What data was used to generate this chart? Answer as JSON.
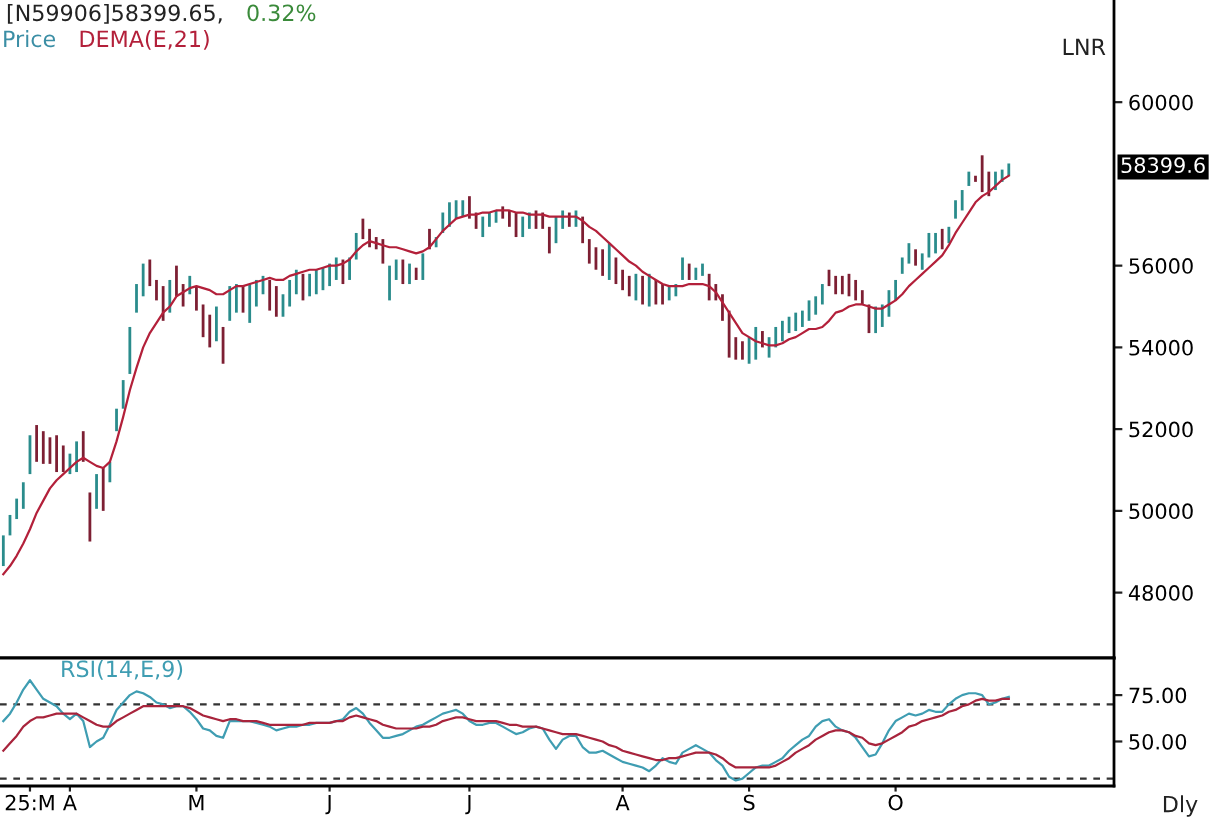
{
  "chart_data": [
    {
      "type": "bar",
      "title": "[N59906]58399.65,",
      "subtitle": "0.32%",
      "legend": "top left",
      "categories": [
        null,
        null,
        null,
        null,
        null,
        null,
        null,
        null,
        null,
        null,
        null,
        null,
        null,
        null,
        null,
        null,
        null,
        null,
        null,
        null,
        null,
        null,
        null,
        null,
        null,
        null,
        null,
        null,
        null,
        null,
        null,
        null,
        null,
        null,
        null,
        null,
        null,
        null,
        null,
        null,
        null,
        null,
        null,
        null,
        null,
        null,
        null,
        null,
        null,
        null,
        null,
        null,
        null,
        null,
        null,
        null,
        null,
        null,
        null,
        null,
        null,
        null,
        null,
        null,
        null,
        null,
        null,
        null,
        null,
        null,
        null,
        null,
        null,
        null,
        null,
        null,
        null,
        null,
        null,
        null,
        null,
        null,
        null,
        null,
        null,
        null,
        null,
        null,
        null,
        null,
        null,
        null,
        null,
        null,
        null,
        null,
        null,
        null,
        null,
        null,
        null,
        null,
        null,
        null,
        null,
        null,
        null,
        null,
        null,
        null,
        null,
        null,
        null,
        null,
        null,
        null,
        null,
        null,
        null,
        null,
        null,
        null,
        null,
        null,
        null,
        null,
        null,
        null,
        null,
        null,
        null,
        null,
        null,
        null,
        null,
        null,
        null,
        null,
        null,
        null,
        null,
        null,
        null,
        null,
        null,
        null,
        null,
        null,
        null,
        null,
        null,
        null
      ],
      "ylim": [
        46400,
        62500
      ],
      "yticks": [
        48000,
        50000,
        52000,
        54000,
        56000,
        60000
      ],
      "series": [
        {
          "name": "Price",
          "type": "bar",
          "color": "#3b8ea5",
          "base": [
            48650,
            49400,
            49800,
            50050,
            50900,
            51200,
            51150,
            51150,
            50950,
            50950,
            50900,
            50950,
            51200,
            49250,
            50050,
            50000,
            50700,
            51950,
            52500,
            53350,
            54850,
            55250,
            55500,
            55150,
            54650,
            54850,
            55250,
            55000,
            55300,
            54900,
            54250,
            54000,
            54150,
            53600,
            54650,
            54850,
            54850,
            54600,
            55000,
            55300,
            54900,
            54750,
            54750,
            55000,
            55300,
            55150,
            55250,
            55300,
            55400,
            55500,
            55650,
            55550,
            55650,
            56150,
            56650,
            56450,
            56400,
            56050,
            55150,
            55650,
            55550,
            55550,
            55650,
            55650,
            56400,
            56450,
            56800,
            56950,
            57150,
            57200,
            57150,
            56900,
            56700,
            56950,
            57050,
            57150,
            56950,
            56700,
            56700,
            56900,
            56900,
            56900,
            56300,
            56550,
            56900,
            56950,
            56950,
            56550,
            56050,
            55900,
            55750,
            55650,
            55550,
            55400,
            55250,
            55150,
            55050,
            55000,
            55050,
            55050,
            55150,
            55250,
            55650,
            55650,
            55650,
            55750,
            55150,
            55150,
            54650,
            53750,
            53700,
            53700,
            53600,
            53700,
            54000,
            53750,
            54000,
            54150,
            54350,
            54400,
            54500,
            54650,
            54800,
            55050,
            55500,
            55300,
            55300,
            55250,
            55150,
            55050,
            54350,
            54350,
            54500,
            54750,
            55150,
            55800,
            56050,
            56000,
            55900,
            56200,
            56300,
            56400,
            56550,
            57150,
            57350,
            57950,
            58050,
            57800,
            57700,
            57850,
            58050,
            58200
          ],
          "values": [
            750,
            500,
            500,
            650,
            950,
            900,
            800,
            650,
            900,
            650,
            500,
            750,
            750,
            1200,
            850,
            1050,
            500,
            550,
            700,
            1150,
            700,
            800,
            650,
            500,
            850,
            800,
            750,
            550,
            450,
            600,
            800,
            800,
            850,
            900,
            850,
            700,
            650,
            950,
            650,
            450,
            750,
            750,
            550,
            650,
            600,
            650,
            550,
            600,
            550,
            550,
            550,
            600,
            550,
            650,
            500,
            450,
            300,
            600,
            850,
            500,
            600,
            500,
            300,
            650,
            500,
            250,
            500,
            600,
            450,
            400,
            550,
            400,
            500,
            350,
            300,
            300,
            400,
            600,
            500,
            400,
            450,
            400,
            650,
            650,
            450,
            350,
            400,
            650,
            600,
            550,
            650,
            900,
            650,
            500,
            500,
            650,
            700,
            800,
            600,
            500,
            350,
            300,
            550,
            400,
            300,
            300,
            650,
            400,
            650,
            1150,
            550,
            450,
            650,
            800,
            400,
            500,
            500,
            500,
            400,
            450,
            400,
            500,
            450,
            500,
            400,
            450,
            450,
            550,
            500,
            350,
            700,
            650,
            550,
            650,
            500,
            400,
            500,
            400,
            400,
            600,
            500,
            500,
            400,
            450,
            500,
            350,
            150,
            900,
            600,
            450,
            300,
            300
          ],
          "colors": [
            "#2a8c8c",
            "#2a8c8c",
            "#2a8c8c",
            "#2a8c8c",
            "#2a8c8c",
            "#7d1f33",
            "#7d1f33",
            "#7d1f33",
            "#7d1f33",
            "#7d1f33",
            "#2a8c8c",
            "#2a8c8c",
            "#7d1f33",
            "#7d1f33",
            "#2a8c8c",
            "#7d1f33",
            "#2a8c8c",
            "#2a8c8c",
            "#2a8c8c",
            "#2a8c8c",
            "#2a8c8c",
            "#2a8c8c",
            "#7d1f33",
            "#7d1f33",
            "#7d1f33",
            "#2a8c8c",
            "#7d1f33",
            "#7d1f33",
            "#2a8c8c",
            "#7d1f33",
            "#7d1f33",
            "#7d1f33",
            "#2a8c8c",
            "#7d1f33",
            "#2a8c8c",
            "#2a8c8c",
            "#7d1f33",
            "#2a8c8c",
            "#2a8c8c",
            "#2a8c8c",
            "#7d1f33",
            "#7d1f33",
            "#2a8c8c",
            "#2a8c8c",
            "#2a8c8c",
            "#7d1f33",
            "#2a8c8c",
            "#2a8c8c",
            "#2a8c8c",
            "#2a8c8c",
            "#2a8c8c",
            "#7d1f33",
            "#2a8c8c",
            "#2a8c8c",
            "#7d1f33",
            "#7d1f33",
            "#7d1f33",
            "#7d1f33",
            "#2a8c8c",
            "#2a8c8c",
            "#7d1f33",
            "#2a8c8c",
            "#7d1f33",
            "#2a8c8c",
            "#7d1f33",
            "#2a8c8c",
            "#2a8c8c",
            "#2a8c8c",
            "#2a8c8c",
            "#2a8c8c",
            "#7d1f33",
            "#7d1f33",
            "#2a8c8c",
            "#2a8c8c",
            "#2a8c8c",
            "#7d1f33",
            "#7d1f33",
            "#7d1f33",
            "#2a8c8c",
            "#2a8c8c",
            "#7d1f33",
            "#7d1f33",
            "#7d1f33",
            "#2a8c8c",
            "#2a8c8c",
            "#7d1f33",
            "#2a8c8c",
            "#7d1f33",
            "#7d1f33",
            "#7d1f33",
            "#7d1f33",
            "#2a8c8c",
            "#7d1f33",
            "#7d1f33",
            "#7d1f33",
            "#2a8c8c",
            "#7d1f33",
            "#2a8c8c",
            "#7d1f33",
            "#7d1f33",
            "#2a8c8c",
            "#2a8c8c",
            "#2a8c8c",
            "#7d1f33",
            "#2a8c8c",
            "#2a8c8c",
            "#7d1f33",
            "#7d1f33",
            "#7d1f33",
            "#7d1f33",
            "#7d1f33",
            "#7d1f33",
            "#2a8c8c",
            "#2a8c8c",
            "#7d1f33",
            "#2a8c8c",
            "#2a8c8c",
            "#2a8c8c",
            "#2a8c8c",
            "#2a8c8c",
            "#2a8c8c",
            "#2a8c8c",
            "#2a8c8c",
            "#2a8c8c",
            "#7d1f33",
            "#7d1f33",
            "#7d1f33",
            "#7d1f33",
            "#7d1f33",
            "#7d1f33",
            "#7d1f33",
            "#2a8c8c",
            "#2a8c8c",
            "#2a8c8c",
            "#2a8c8c",
            "#2a8c8c",
            "#2a8c8c",
            "#7d1f33",
            "#2a8c8c",
            "#2a8c8c",
            "#2a8c8c",
            "#7d1f33",
            "#2a8c8c",
            "#2a8c8c",
            "#2a8c8c",
            "#2a8c8c",
            "#7d1f33",
            "#7d1f33",
            "#7d1f33",
            "#2a8c8c",
            "#2a8c8c",
            "#2a8c8c"
          ]
        },
        {
          "name": "DEMA(E,21)",
          "type": "line",
          "color": "#b3203a",
          "values": [
            48450,
            48650,
            48900,
            49200,
            49550,
            49950,
            50250,
            50550,
            50750,
            50900,
            51050,
            51200,
            51300,
            51200,
            51100,
            51050,
            51200,
            51700,
            52300,
            52950,
            53500,
            54000,
            54350,
            54600,
            54850,
            55000,
            55250,
            55350,
            55450,
            55500,
            55450,
            55400,
            55300,
            55300,
            55400,
            55500,
            55500,
            55550,
            55600,
            55650,
            55700,
            55650,
            55650,
            55750,
            55800,
            55850,
            55900,
            55900,
            55950,
            56000,
            56000,
            56050,
            56150,
            56350,
            56500,
            56600,
            56550,
            56500,
            56450,
            56450,
            56400,
            56350,
            56300,
            56350,
            56450,
            56650,
            56850,
            57000,
            57150,
            57200,
            57250,
            57250,
            57300,
            57300,
            57350,
            57350,
            57350,
            57300,
            57300,
            57250,
            57250,
            57250,
            57200,
            57200,
            57200,
            57200,
            57200,
            57100,
            56950,
            56850,
            56700,
            56550,
            56400,
            56250,
            56100,
            56000,
            55850,
            55750,
            55650,
            55550,
            55500,
            55500,
            55500,
            55550,
            55550,
            55550,
            55500,
            55350,
            55100,
            54850,
            54600,
            54350,
            54250,
            54150,
            54100,
            54050,
            54050,
            54100,
            54200,
            54250,
            54350,
            54450,
            54450,
            54500,
            54650,
            54850,
            54900,
            55000,
            55050,
            55050,
            55000,
            54950,
            54950,
            55050,
            55150,
            55300,
            55500,
            55650,
            55800,
            55950,
            56100,
            56250,
            56500,
            56800,
            57050,
            57300,
            57550,
            57700,
            57800,
            57950,
            58100,
            58200
          ]
        }
      ],
      "annotations": [
        "LNR",
        "58399.6"
      ]
    },
    {
      "type": "line",
      "legend": "top left",
      "categories": [
        null,
        null,
        null,
        null,
        "25:M",
        null,
        null,
        null,
        null,
        null,
        "A",
        null,
        null,
        null,
        null,
        null,
        null,
        null,
        null,
        null,
        null,
        null,
        null,
        null,
        null,
        null,
        null,
        null,
        null,
        "M",
        null,
        null,
        null,
        null,
        null,
        null,
        null,
        null,
        null,
        null,
        null,
        null,
        null,
        null,
        null,
        null,
        null,
        null,
        null,
        "J",
        null,
        null,
        null,
        null,
        null,
        null,
        null,
        null,
        null,
        null,
        null,
        null,
        null,
        null,
        null,
        null,
        null,
        null,
        null,
        null,
        "J",
        null,
        null,
        null,
        null,
        null,
        null,
        null,
        null,
        null,
        null,
        null,
        null,
        null,
        null,
        null,
        null,
        null,
        null,
        null,
        null,
        null,
        null,
        "A",
        null,
        null,
        null,
        null,
        null,
        null,
        null,
        null,
        null,
        null,
        null,
        null,
        null,
        null,
        null,
        null,
        null,
        null,
        "S",
        null,
        null,
        null,
        null,
        null,
        null,
        null,
        null,
        null,
        null,
        null,
        null,
        null,
        null,
        null,
        null,
        null,
        null,
        null,
        null,
        null,
        "O",
        null,
        null,
        null,
        null,
        null,
        null,
        null,
        null,
        null,
        null,
        null,
        null,
        null,
        null,
        null,
        null,
        null
      ],
      "ylim": [
        26,
        95
      ],
      "yticks": [
        {
          "value": 75,
          "label": "75.00"
        },
        {
          "value": 50,
          "label": "50.00"
        }
      ],
      "series": [
        {
          "name": "RSI(14,E,9)",
          "color": "#3f9db2",
          "values": [
            61,
            65,
            71,
            78,
            83,
            78,
            73,
            71,
            69,
            65,
            62,
            65,
            61,
            47,
            50,
            52,
            59,
            67,
            71,
            75,
            77,
            76,
            74,
            71,
            70,
            68,
            69,
            69,
            66,
            62,
            57,
            56,
            53,
            52,
            61,
            61,
            61,
            61,
            60,
            59,
            58,
            56,
            57,
            58,
            58,
            59,
            59,
            60,
            60,
            60,
            61,
            62,
            66,
            68,
            65,
            60,
            56,
            52,
            52,
            53,
            54,
            56,
            58,
            59,
            61,
            63,
            65,
            66,
            67,
            65,
            61,
            59,
            59,
            60,
            60,
            58,
            56,
            54,
            55,
            57,
            58,
            57,
            51,
            46,
            51,
            53,
            53,
            47,
            44,
            44,
            45,
            43,
            41,
            39,
            38,
            37,
            36,
            34,
            37,
            41,
            39,
            38,
            44,
            46,
            48,
            46,
            44,
            40,
            37,
            31,
            29,
            30,
            33,
            36,
            37,
            37,
            39,
            41,
            45,
            48,
            51,
            53,
            58,
            61,
            62,
            58,
            56,
            55,
            52,
            47,
            42,
            43,
            49,
            56,
            61,
            63,
            65,
            64,
            65,
            67,
            66,
            66,
            70,
            73,
            75,
            76,
            76,
            75,
            70,
            71,
            73,
            74
          ]
        },
        {
          "color": "#a8243c",
          "values": [
            45,
            49,
            53,
            58,
            61,
            63,
            63,
            64,
            65,
            65,
            65,
            65,
            63,
            61,
            59,
            58,
            58,
            61,
            63,
            65,
            67,
            69,
            69,
            69,
            69,
            69,
            69,
            69,
            68,
            66,
            64,
            63,
            62,
            61,
            62,
            62,
            61,
            61,
            61,
            60,
            59,
            59,
            59,
            59,
            59,
            59,
            60,
            60,
            60,
            60,
            61,
            61,
            63,
            64,
            63,
            62,
            61,
            59,
            58,
            57,
            57,
            57,
            57,
            58,
            58,
            59,
            61,
            62,
            63,
            63,
            62,
            61,
            61,
            61,
            61,
            60,
            59,
            59,
            58,
            58,
            58,
            57,
            56,
            55,
            54,
            54,
            54,
            53,
            52,
            51,
            50,
            48,
            47,
            45,
            44,
            43,
            42,
            41,
            40,
            40,
            41,
            41,
            42,
            43,
            44,
            44,
            44,
            43,
            41,
            38,
            36,
            36,
            36,
            36,
            36,
            36,
            37,
            39,
            41,
            44,
            46,
            48,
            51,
            53,
            55,
            56,
            56,
            55,
            53,
            52,
            49,
            48,
            49,
            51,
            53,
            55,
            58,
            59,
            61,
            62,
            63,
            64,
            66,
            67,
            69,
            70,
            72,
            73,
            72,
            72,
            73,
            73
          ]
        }
      ],
      "ref_lines": [
        {
          "axis": "y",
          "value": 70,
          "line_style": "dashed",
          "color": "#333333"
        },
        {
          "axis": "y",
          "value": 30,
          "line_style": "dashed",
          "color": "#333333"
        }
      ],
      "annotations": [
        "Dly"
      ]
    }
  ]
}
